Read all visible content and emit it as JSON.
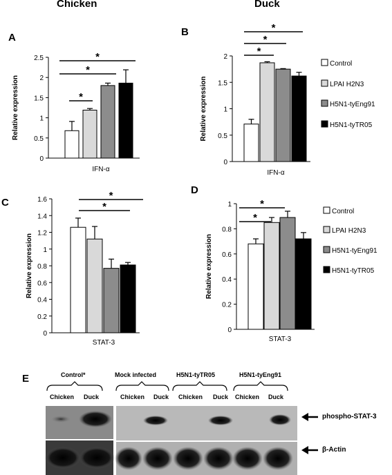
{
  "column_titles": {
    "chicken": "Chicken",
    "duck": "Duck"
  },
  "panel_letters": {
    "A": "A",
    "B": "B",
    "C": "C",
    "D": "D",
    "E": "E"
  },
  "legend_colors": {
    "Control": "#ffffff",
    "LPAI H2N3": "#d9d9d9",
    "H5N1-tyEng91": "#8c8c8c",
    "H5N1-tyTR05": "#000000"
  },
  "chart_data": [
    {
      "panel": "A",
      "type": "bar",
      "categories": [
        "Control",
        "LPAI H2N3",
        "H5N1-tyEng91",
        "H5N1-tyTR05"
      ],
      "values": [
        0.68,
        1.19,
        1.8,
        1.86
      ],
      "errors": [
        0.23,
        0.04,
        0.06,
        0.33
      ],
      "xlabel": "IFN-α",
      "ylabel": "Relative expression",
      "ylim": [
        0,
        2.5
      ],
      "ticks": [
        "0",
        "0.5",
        "1",
        "1.5",
        "2",
        "2.5"
      ],
      "significance": [
        "*",
        "*",
        "*"
      ],
      "legend": false
    },
    {
      "panel": "B",
      "type": "bar",
      "categories": [
        "Control",
        "LPAI H2N3",
        "H5N1-tyEng91",
        "H5N1-tyTR05"
      ],
      "values": [
        0.71,
        1.87,
        1.75,
        1.62
      ],
      "errors": [
        0.09,
        0.02,
        0.01,
        0.07
      ],
      "xlabel": "IFN-α",
      "ylabel": "Relative expression",
      "ylim": [
        0,
        2
      ],
      "ticks": [
        "0",
        "0.5",
        "1",
        "1.5",
        "2"
      ],
      "significance": [
        "*",
        "*",
        "*"
      ],
      "legend": true,
      "legend_labels": [
        "Control",
        "LPAI H2N3",
        "H5N1-tyEng91",
        "H5N1-tyTR05"
      ]
    },
    {
      "panel": "C",
      "type": "bar",
      "categories": [
        "Control",
        "LPAI H2N3",
        "H5N1-tyEng91",
        "H5N1-tyTR05"
      ],
      "values": [
        1.26,
        1.12,
        0.77,
        0.81
      ],
      "errors": [
        0.11,
        0.15,
        0.11,
        0.03
      ],
      "xlabel": "STAT-3",
      "ylabel": "Relative expression",
      "ylim": [
        0,
        1.6
      ],
      "ticks": [
        "0",
        "0.2",
        "0.4",
        "0.6",
        "0.8",
        "1",
        "1.2",
        "1.4",
        "1.6"
      ],
      "significance": [
        "*",
        "*"
      ],
      "legend": false
    },
    {
      "panel": "D",
      "type": "bar",
      "categories": [
        "Control",
        "LPAI H2N3",
        "H5N1-tyEng91",
        "H5N1-tyTR05"
      ],
      "values": [
        0.68,
        0.85,
        0.89,
        0.72
      ],
      "errors": [
        0.04,
        0.04,
        0.05,
        0.05
      ],
      "xlabel": "STAT-3",
      "ylabel": "Relative expression",
      "ylim": [
        0,
        1
      ],
      "ticks": [
        "0",
        "0.2",
        "0.4",
        "0.6",
        "0.8",
        "1"
      ],
      "significance": [
        "*",
        "*"
      ],
      "legend": true,
      "legend_labels": [
        "Control",
        "LPAI H2N3",
        "H5N1-tyEng91",
        "H5N1-tyTR05"
      ]
    }
  ],
  "blot": {
    "groups": [
      "Control*",
      "Mock infected",
      "H5N1-tyTR05",
      "H5N1-tyEng91"
    ],
    "lanes": [
      "Chicken",
      "Duck",
      "Chicken",
      "Duck",
      "Chicken",
      "Duck",
      "Chicken",
      "Duck"
    ],
    "band_labels": [
      "phospho-STAT-3",
      "β-Actin"
    ]
  }
}
